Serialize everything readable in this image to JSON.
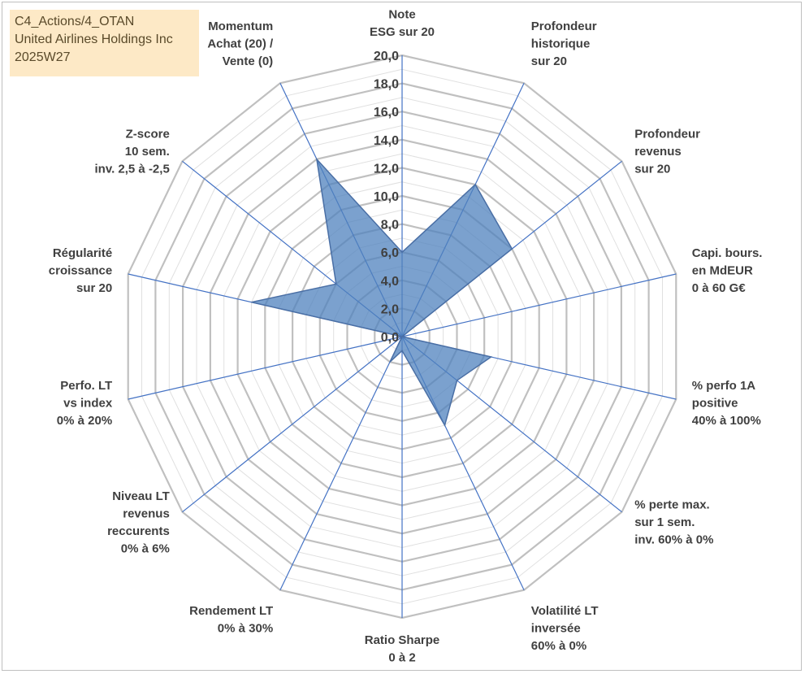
{
  "info": {
    "line1": "C4_Actions/4_OTAN",
    "line2": "United Airlines Holdings Inc",
    "line3": "2025W27"
  },
  "chart_data": {
    "type": "radar",
    "title": "",
    "rlim": [
      0,
      20
    ],
    "ticks": [
      "0,0",
      "2,0",
      "4,0",
      "6,0",
      "8,0",
      "10,0",
      "12,0",
      "14,0",
      "16,0",
      "18,0",
      "20,0"
    ],
    "grid": true,
    "categories": [
      [
        "Note",
        "ESG sur 20"
      ],
      [
        "Profondeur",
        "historique",
        "sur 20"
      ],
      [
        "Profondeur",
        "revenus",
        "sur 20"
      ],
      [
        "Capi. bours.",
        "en MdEUR",
        "0 à 60 G€"
      ],
      [
        "% perfo 1A",
        "positive",
        "40% à 100%"
      ],
      [
        "% perte max.",
        "sur 1 sem.",
        "inv. 60% à 0%"
      ],
      [
        "Volatilité LT",
        "inversée",
        "60% à 0%"
      ],
      [
        "Ratio Sharpe",
        "0 à 2"
      ],
      [
        "Rendement LT",
        "0% à 30%"
      ],
      [
        "Niveau LT",
        "revenus",
        "reccurents",
        "0% à 6%"
      ],
      [
        "Perfo. LT",
        "vs index",
        "0% à 20%"
      ],
      [
        "Régularité",
        "croissance",
        "sur 20"
      ],
      [
        "Z-score",
        "10 sem.",
        "inv. 2,5 à -2,5"
      ],
      [
        "Momentum",
        "Achat (20) /",
        "Vente (0)"
      ]
    ],
    "series": [
      {
        "values": [
          6.0,
          12.0,
          10.0,
          0.0,
          6.5,
          5.0,
          7.0,
          1.0,
          2.0,
          0.0,
          0.0,
          11.0,
          6.0,
          14.0
        ]
      }
    ],
    "colors": {
      "fill": "#4f81bd",
      "fill_opacity": 0.75,
      "edge": "#4a6fa5",
      "spoke": "#4472c4",
      "grid_major": "#c0c0c0",
      "grid_minor": "#e0e0e0",
      "text": "#404040"
    }
  }
}
